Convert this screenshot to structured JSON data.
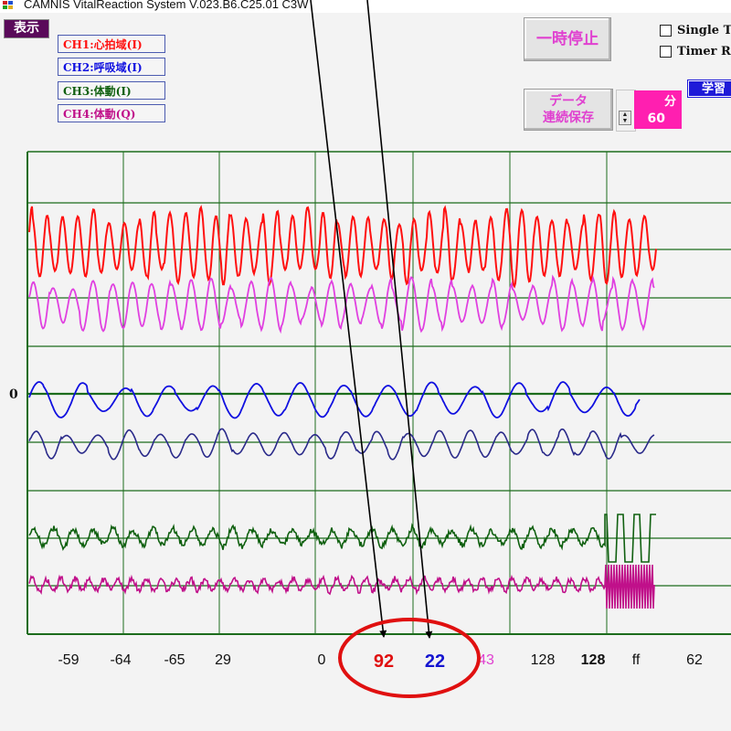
{
  "window": {
    "title": "CAMNIS VitalReaction System V.023.B6.C25.01 C3W"
  },
  "menu": {
    "display_label": "表示"
  },
  "channels": [
    {
      "label": "CH1:心拍域(I)",
      "color": "#ff1010"
    },
    {
      "label": "CH2:呼吸域(I)",
      "color": "#1010e0"
    },
    {
      "label": "CH3:体動(I)",
      "color": "#106010"
    },
    {
      "label": "CH4:体動(Q)",
      "color": "#c0108a"
    }
  ],
  "controls": {
    "pause_label": "一時停止",
    "save_label_line1": "データ",
    "save_label_line2": "連続保存",
    "interval_unit": "分",
    "interval_value": "60",
    "single_trigger_label": "Single Tr",
    "timer_label": "Timer Re",
    "learn_label": "学習"
  },
  "chart": {
    "zero_label": "0"
  },
  "readouts": [
    {
      "text": "-59",
      "color": "#111111"
    },
    {
      "text": "-64",
      "color": "#111111"
    },
    {
      "text": "-65",
      "color": "#111111"
    },
    {
      "text": "29",
      "color": "#111111"
    },
    {
      "text": "0",
      "color": "#111111"
    },
    {
      "text": "92",
      "color": "#e01010"
    },
    {
      "text": "22",
      "color": "#1515d0"
    },
    {
      "text": "43",
      "color": "#e040d0"
    },
    {
      "text": "128",
      "color": "#111111"
    },
    {
      "text": "128",
      "color": "#111111"
    },
    {
      "text": "ff",
      "color": "#111111"
    },
    {
      "text": "62",
      "color": "#111111"
    }
  ],
  "annotation": {
    "ellipse_color": "#e01010",
    "arrow_color": "#000000"
  }
}
